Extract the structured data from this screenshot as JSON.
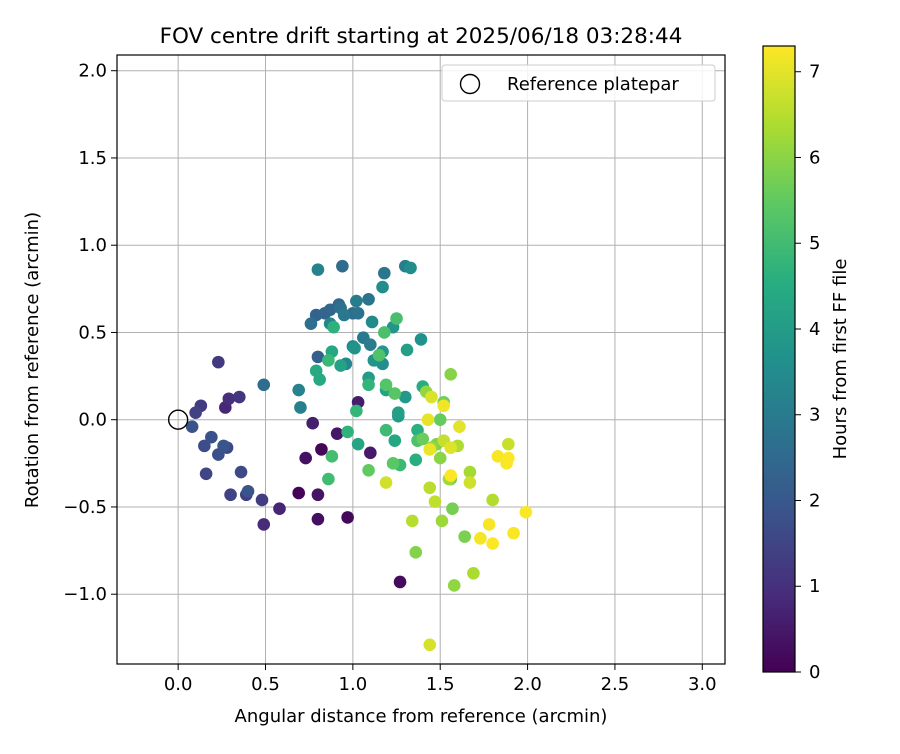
{
  "chart_data": {
    "type": "scatter",
    "title": "FOV centre drift starting at 2025/06/18 03:28:44",
    "xlabel": "Angular distance from reference (arcmin)",
    "ylabel": "Rotation from reference (arcmin)",
    "xlim": [
      -0.35,
      3.13
    ],
    "ylim": [
      -1.4,
      2.09
    ],
    "xticks": [
      0.0,
      0.5,
      1.0,
      1.5,
      2.0,
      2.5,
      3.0
    ],
    "xtick_labels": [
      "0.0",
      "0.5",
      "1.0",
      "1.5",
      "2.0",
      "2.5",
      "3.0"
    ],
    "yticks": [
      -1.0,
      -0.5,
      0.0,
      0.5,
      1.0,
      1.5,
      2.0
    ],
    "ytick_labels": [
      "−1.0",
      "−0.5",
      "0.0",
      "0.5",
      "1.0",
      "1.5",
      "2.0"
    ],
    "grid": true,
    "legend": {
      "position": "top-right",
      "entries": [
        {
          "label": "Reference platepar",
          "marker": "open-circle"
        }
      ]
    },
    "reference_point": {
      "x": 0.0,
      "y": 0.0
    },
    "colorbar": {
      "label": "Hours from first FF file",
      "range": [
        0,
        7.3
      ],
      "ticks": [
        0,
        1,
        2,
        3,
        4,
        5,
        6,
        7
      ],
      "tick_labels": [
        "0",
        "1",
        "2",
        "3",
        "4",
        "5",
        "6",
        "7"
      ],
      "colormap": "viridis"
    },
    "points": [
      {
        "x": 0.69,
        "y": -0.42,
        "c": 0.05
      },
      {
        "x": 0.82,
        "y": -0.17,
        "c": 0.1
      },
      {
        "x": 0.97,
        "y": -0.56,
        "c": 0.15
      },
      {
        "x": 1.27,
        "y": -0.93,
        "c": 0.2
      },
      {
        "x": 0.8,
        "y": -0.57,
        "c": 0.3
      },
      {
        "x": 0.73,
        "y": -0.22,
        "c": 0.35
      },
      {
        "x": 0.8,
        "y": -0.43,
        "c": 0.4
      },
      {
        "x": 0.91,
        "y": -0.08,
        "c": 0.45
      },
      {
        "x": 1.1,
        "y": -0.19,
        "c": 0.5
      },
      {
        "x": 1.03,
        "y": 0.1,
        "c": 0.55
      },
      {
        "x": 0.77,
        "y": -0.02,
        "c": 0.6
      },
      {
        "x": 0.58,
        "y": -0.51,
        "c": 0.75
      },
      {
        "x": 0.27,
        "y": 0.07,
        "c": 0.8
      },
      {
        "x": 0.49,
        "y": -0.6,
        "c": 0.9
      },
      {
        "x": 0.29,
        "y": 0.12,
        "c": 0.95
      },
      {
        "x": 0.35,
        "y": 0.13,
        "c": 1.1
      },
      {
        "x": 0.23,
        "y": 0.33,
        "c": 1.2
      },
      {
        "x": 0.13,
        "y": 0.08,
        "c": 1.25
      },
      {
        "x": 0.48,
        "y": -0.46,
        "c": 1.3
      },
      {
        "x": 0.39,
        "y": -0.43,
        "c": 1.35
      },
      {
        "x": 0.1,
        "y": 0.04,
        "c": 1.4
      },
      {
        "x": 0.3,
        "y": -0.43,
        "c": 1.45
      },
      {
        "x": 0.16,
        "y": -0.31,
        "c": 1.5
      },
      {
        "x": 0.28,
        "y": -0.16,
        "c": 1.55
      },
      {
        "x": 0.36,
        "y": -0.3,
        "c": 1.6
      },
      {
        "x": 0.15,
        "y": -0.15,
        "c": 1.7
      },
      {
        "x": 0.23,
        "y": -0.2,
        "c": 1.75
      },
      {
        "x": 0.19,
        "y": -0.1,
        "c": 1.8
      },
      {
        "x": 0.08,
        "y": -0.04,
        "c": 1.85
      },
      {
        "x": 0.4,
        "y": -0.41,
        "c": 1.9
      },
      {
        "x": 0.26,
        "y": -0.15,
        "c": 1.95
      },
      {
        "x": 0.8,
        "y": 0.36,
        "c": 2.2
      },
      {
        "x": 0.49,
        "y": 0.2,
        "c": 2.6
      },
      {
        "x": 0.79,
        "y": 0.6,
        "c": 2.3
      },
      {
        "x": 0.84,
        "y": 0.61,
        "c": 2.35
      },
      {
        "x": 0.87,
        "y": 0.63,
        "c": 2.4
      },
      {
        "x": 0.92,
        "y": 0.66,
        "c": 2.45
      },
      {
        "x": 0.94,
        "y": 0.88,
        "c": 2.5
      },
      {
        "x": 1.0,
        "y": 0.61,
        "c": 2.6
      },
      {
        "x": 0.76,
        "y": 0.55,
        "c": 2.65
      },
      {
        "x": 0.93,
        "y": 0.64,
        "c": 2.7
      },
      {
        "x": 1.03,
        "y": 0.61,
        "c": 2.75
      },
      {
        "x": 1.09,
        "y": 0.69,
        "c": 2.8
      },
      {
        "x": 1.18,
        "y": 0.84,
        "c": 2.85
      },
      {
        "x": 0.95,
        "y": 0.6,
        "c": 2.9
      },
      {
        "x": 1.06,
        "y": 0.47,
        "c": 2.95
      },
      {
        "x": 1.1,
        "y": 0.43,
        "c": 3.0
      },
      {
        "x": 1.02,
        "y": 0.68,
        "c": 3.05
      },
      {
        "x": 1.3,
        "y": 0.88,
        "c": 3.1
      },
      {
        "x": 0.7,
        "y": 0.07,
        "c": 3.15
      },
      {
        "x": 0.69,
        "y": 0.17,
        "c": 3.2
      },
      {
        "x": 0.8,
        "y": 0.86,
        "c": 3.25
      },
      {
        "x": 0.87,
        "y": 0.55,
        "c": 3.3
      },
      {
        "x": 0.96,
        "y": 0.32,
        "c": 3.35
      },
      {
        "x": 1.0,
        "y": 0.42,
        "c": 3.4
      },
      {
        "x": 1.11,
        "y": 0.56,
        "c": 3.45
      },
      {
        "x": 1.17,
        "y": 0.76,
        "c": 3.5
      },
      {
        "x": 1.33,
        "y": 0.87,
        "c": 3.55
      },
      {
        "x": 1.17,
        "y": 0.32,
        "c": 3.6
      },
      {
        "x": 1.39,
        "y": 0.46,
        "c": 3.65
      },
      {
        "x": 1.01,
        "y": 0.41,
        "c": 3.7
      },
      {
        "x": 1.12,
        "y": 0.34,
        "c": 3.75
      },
      {
        "x": 1.23,
        "y": 0.53,
        "c": 3.8
      },
      {
        "x": 1.17,
        "y": 0.39,
        "c": 3.85
      },
      {
        "x": 1.3,
        "y": 0.13,
        "c": 3.9
      },
      {
        "x": 1.26,
        "y": 0.02,
        "c": 3.95
      },
      {
        "x": 1.09,
        "y": 0.24,
        "c": 4.0
      },
      {
        "x": 1.26,
        "y": 0.04,
        "c": 4.05
      },
      {
        "x": 1.31,
        "y": 0.4,
        "c": 4.1
      },
      {
        "x": 0.93,
        "y": 0.31,
        "c": 4.15
      },
      {
        "x": 1.19,
        "y": 0.17,
        "c": 4.2
      },
      {
        "x": 1.03,
        "y": -0.14,
        "c": 4.25
      },
      {
        "x": 1.24,
        "y": -0.12,
        "c": 4.3
      },
      {
        "x": 0.88,
        "y": 0.39,
        "c": 4.35
      },
      {
        "x": 0.81,
        "y": 0.23,
        "c": 4.4
      },
      {
        "x": 0.79,
        "y": 0.28,
        "c": 4.45
      },
      {
        "x": 1.4,
        "y": 0.19,
        "c": 4.5
      },
      {
        "x": 1.36,
        "y": -0.23,
        "c": 4.55
      },
      {
        "x": 1.37,
        "y": -0.06,
        "c": 4.6
      },
      {
        "x": 0.89,
        "y": 0.53,
        "c": 4.65
      },
      {
        "x": 0.97,
        "y": -0.07,
        "c": 4.7
      },
      {
        "x": 1.09,
        "y": 0.2,
        "c": 4.75
      },
      {
        "x": 1.02,
        "y": 0.05,
        "c": 4.8
      },
      {
        "x": 0.86,
        "y": 0.34,
        "c": 4.85
      },
      {
        "x": 1.27,
        "y": -0.26,
        "c": 4.9
      },
      {
        "x": 1.19,
        "y": -0.06,
        "c": 4.95
      },
      {
        "x": 0.86,
        "y": -0.34,
        "c": 5.0
      },
      {
        "x": 0.88,
        "y": -0.21,
        "c": 5.05
      },
      {
        "x": 1.25,
        "y": 0.58,
        "c": 5.1
      },
      {
        "x": 1.18,
        "y": 0.5,
        "c": 5.15
      },
      {
        "x": 1.37,
        "y": -0.12,
        "c": 5.2
      },
      {
        "x": 1.15,
        "y": 0.37,
        "c": 5.25
      },
      {
        "x": 1.19,
        "y": 0.2,
        "c": 5.3
      },
      {
        "x": 1.24,
        "y": 0.15,
        "c": 5.35
      },
      {
        "x": 1.23,
        "y": -0.25,
        "c": 5.4
      },
      {
        "x": 1.09,
        "y": -0.29,
        "c": 5.5
      },
      {
        "x": 1.5,
        "y": 0.0,
        "c": 5.55
      },
      {
        "x": 1.4,
        "y": -0.11,
        "c": 5.6
      },
      {
        "x": 1.56,
        "y": -0.34,
        "c": 5.65
      },
      {
        "x": 1.52,
        "y": 0.1,
        "c": 5.7
      },
      {
        "x": 1.57,
        "y": -0.51,
        "c": 5.75
      },
      {
        "x": 1.64,
        "y": -0.67,
        "c": 5.8
      },
      {
        "x": 1.48,
        "y": -0.14,
        "c": 5.85
      },
      {
        "x": 1.36,
        "y": -0.76,
        "c": 5.9
      },
      {
        "x": 1.56,
        "y": 0.26,
        "c": 5.95
      },
      {
        "x": 1.5,
        "y": -0.22,
        "c": 6.0
      },
      {
        "x": 1.58,
        "y": -0.95,
        "c": 6.05
      },
      {
        "x": 1.42,
        "y": 0.16,
        "c": 6.1
      },
      {
        "x": 1.45,
        "y": -0.16,
        "c": 6.15
      },
      {
        "x": 1.51,
        "y": -0.58,
        "c": 6.2
      },
      {
        "x": 1.55,
        "y": -0.34,
        "c": 6.25
      },
      {
        "x": 1.67,
        "y": -0.3,
        "c": 6.3
      },
      {
        "x": 1.69,
        "y": -0.88,
        "c": 6.35
      },
      {
        "x": 1.6,
        "y": -0.15,
        "c": 6.4
      },
      {
        "x": 1.8,
        "y": -0.46,
        "c": 6.45
      },
      {
        "x": 1.34,
        "y": -0.58,
        "c": 6.5
      },
      {
        "x": 1.44,
        "y": -0.39,
        "c": 6.55
      },
      {
        "x": 1.47,
        "y": -0.47,
        "c": 6.6
      },
      {
        "x": 1.52,
        "y": -0.12,
        "c": 6.65
      },
      {
        "x": 1.89,
        "y": -0.14,
        "c": 6.7
      },
      {
        "x": 1.67,
        "y": -0.36,
        "c": 6.75
      },
      {
        "x": 1.19,
        "y": -0.36,
        "c": 6.8
      },
      {
        "x": 1.44,
        "y": -1.29,
        "c": 6.85
      },
      {
        "x": 1.45,
        "y": 0.13,
        "c": 6.9
      },
      {
        "x": 1.56,
        "y": -0.16,
        "c": 6.95
      },
      {
        "x": 1.61,
        "y": -0.04,
        "c": 7.0
      },
      {
        "x": 1.43,
        "y": 0.0,
        "c": 7.05
      },
      {
        "x": 1.44,
        "y": -0.17,
        "c": 7.1
      },
      {
        "x": 1.52,
        "y": 0.08,
        "c": 7.15
      },
      {
        "x": 1.73,
        "y": -0.68,
        "c": 7.2
      },
      {
        "x": 1.83,
        "y": -0.21,
        "c": 7.22
      },
      {
        "x": 1.78,
        "y": -0.6,
        "c": 7.24
      },
      {
        "x": 1.88,
        "y": -0.25,
        "c": 7.25
      },
      {
        "x": 1.92,
        "y": -0.65,
        "c": 7.26
      },
      {
        "x": 1.99,
        "y": -0.53,
        "c": 7.27
      },
      {
        "x": 1.89,
        "y": -0.22,
        "c": 7.28
      },
      {
        "x": 1.8,
        "y": -0.71,
        "c": 7.29
      },
      {
        "x": 1.56,
        "y": -0.32,
        "c": 7.3
      }
    ]
  }
}
